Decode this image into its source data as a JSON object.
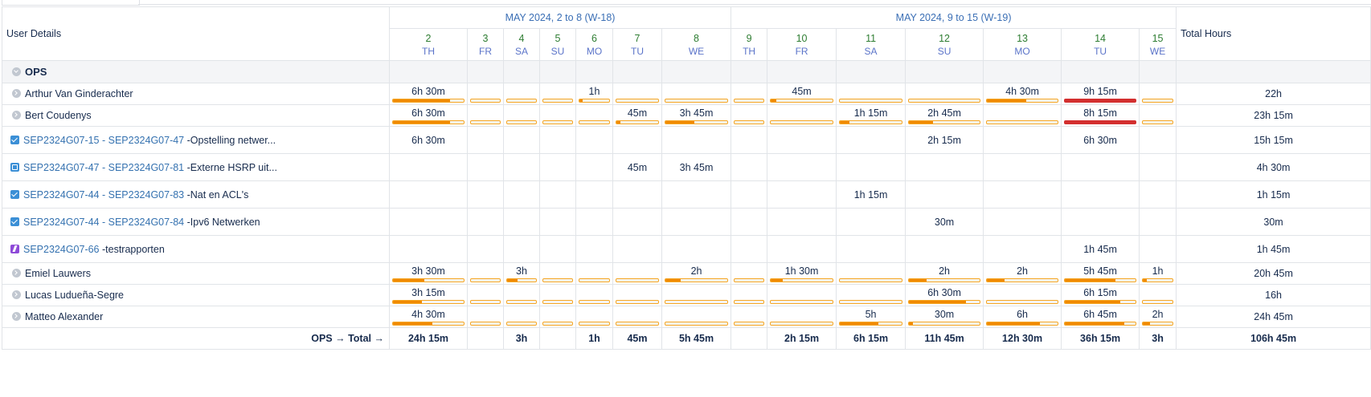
{
  "header": {
    "user_details": "User Details",
    "total_hours": "Total Hours",
    "weeks": [
      {
        "label": "MAY 2024, 2 to 8 (W-18)",
        "span": 7
      },
      {
        "label": "MAY 2024, 9 to 15 (W-19)",
        "span": 7
      }
    ],
    "days": [
      {
        "num": "2",
        "name": "TH"
      },
      {
        "num": "3",
        "name": "FR"
      },
      {
        "num": "4",
        "name": "SA"
      },
      {
        "num": "5",
        "name": "SU"
      },
      {
        "num": "6",
        "name": "MO"
      },
      {
        "num": "7",
        "name": "TU"
      },
      {
        "num": "8",
        "name": "WE"
      },
      {
        "num": "9",
        "name": "TH"
      },
      {
        "num": "10",
        "name": "FR"
      },
      {
        "num": "11",
        "name": "SA"
      },
      {
        "num": "12",
        "name": "SU"
      },
      {
        "num": "13",
        "name": "MO"
      },
      {
        "num": "14",
        "name": "TU"
      },
      {
        "num": "15",
        "name": "WE"
      }
    ]
  },
  "group": {
    "name": "OPS"
  },
  "rows": [
    {
      "kind": "user",
      "name": "Arthur Van Ginderachter",
      "total": "22h",
      "values": [
        "6h 30m",
        "",
        "",
        "",
        "1h",
        "",
        "",
        "",
        "45m",
        "",
        "",
        "4h 30m",
        "9h 15m",
        ""
      ],
      "load": [
        0.81,
        0,
        0,
        0,
        0.12,
        0,
        0,
        0,
        0.09,
        0,
        0,
        0.56,
        1,
        0
      ],
      "over": [
        false,
        false,
        false,
        false,
        false,
        false,
        false,
        false,
        false,
        false,
        false,
        false,
        true,
        false
      ]
    },
    {
      "kind": "user",
      "name": "Bert Coudenys",
      "total": "23h 15m",
      "values": [
        "6h 30m",
        "",
        "",
        "",
        "",
        "45m",
        "3h 45m",
        "",
        "",
        "1h 15m",
        "2h 45m",
        "",
        "8h 15m",
        ""
      ],
      "load": [
        0.81,
        0,
        0,
        0,
        0,
        0.09,
        0.47,
        0,
        0,
        0.16,
        0.34,
        0,
        1,
        0
      ],
      "over": [
        false,
        false,
        false,
        false,
        false,
        false,
        false,
        false,
        false,
        false,
        false,
        false,
        true,
        false
      ]
    },
    {
      "kind": "issue",
      "icon": "task",
      "link": "SEP2324G07-15 - SEP2324G07-47",
      "title": " -Opstelling netwer...",
      "total": "15h 15m",
      "values": [
        "6h 30m",
        "",
        "",
        "",
        "",
        "",
        "",
        "",
        "",
        "",
        "2h 15m",
        "",
        "6h 30m",
        ""
      ]
    },
    {
      "kind": "issue",
      "icon": "sub",
      "link": "SEP2324G07-47 - SEP2324G07-81",
      "title": " -Externe HSRP uit...",
      "total": "4h 30m",
      "values": [
        "",
        "",
        "",
        "",
        "",
        "45m",
        "3h 45m",
        "",
        "",
        "",
        "",
        "",
        "",
        ""
      ]
    },
    {
      "kind": "issue",
      "icon": "task",
      "link": "SEP2324G07-44 - SEP2324G07-83",
      "title": " -Nat en ACL's",
      "total": "1h 15m",
      "values": [
        "",
        "",
        "",
        "",
        "",
        "",
        "",
        "",
        "",
        "1h 15m",
        "",
        "",
        "",
        ""
      ]
    },
    {
      "kind": "issue",
      "icon": "task",
      "link": "SEP2324G07-44 - SEP2324G07-84",
      "title": " -Ipv6 Netwerken",
      "total": "30m",
      "values": [
        "",
        "",
        "",
        "",
        "",
        "",
        "",
        "",
        "",
        "",
        "30m",
        "",
        "",
        ""
      ]
    },
    {
      "kind": "issue",
      "icon": "epic",
      "link": "SEP2324G07-66",
      "title": " -testrapporten",
      "total": "1h 45m",
      "values": [
        "",
        "",
        "",
        "",
        "",
        "",
        "",
        "",
        "",
        "",
        "",
        "",
        "1h 45m",
        ""
      ]
    },
    {
      "kind": "user",
      "name": "Emiel Lauwers",
      "total": "20h 45m",
      "values": [
        "3h 30m",
        "",
        "3h",
        "",
        "",
        "",
        "2h",
        "",
        "1h 30m",
        "",
        "2h",
        "2h",
        "5h 45m",
        "1h"
      ],
      "load": [
        0.44,
        0,
        0.37,
        0,
        0,
        0,
        0.25,
        0,
        0.19,
        0,
        0.25,
        0.25,
        0.72,
        0.12
      ],
      "over": [
        false,
        false,
        false,
        false,
        false,
        false,
        false,
        false,
        false,
        false,
        false,
        false,
        false,
        false
      ]
    },
    {
      "kind": "user",
      "name": "Lucas Ludueña-Segre",
      "total": "16h",
      "values": [
        "3h 15m",
        "",
        "",
        "",
        "",
        "",
        "",
        "",
        "",
        "",
        "6h 30m",
        "",
        "6h 15m",
        ""
      ],
      "load": [
        0.41,
        0,
        0,
        0,
        0,
        0,
        0,
        0,
        0,
        0,
        0.81,
        0,
        0.78,
        0
      ],
      "over": [
        false,
        false,
        false,
        false,
        false,
        false,
        false,
        false,
        false,
        false,
        false,
        false,
        false,
        false
      ]
    },
    {
      "kind": "user",
      "name": "Matteo Alexander",
      "total": "24h 45m",
      "values": [
        "4h 30m",
        "",
        "",
        "",
        "",
        "",
        "",
        "",
        "",
        "5h",
        "30m",
        "6h",
        "6h 45m",
        "2h"
      ],
      "load": [
        0.56,
        0,
        0,
        0,
        0,
        0,
        0,
        0,
        0,
        0.62,
        0.06,
        0.75,
        0.84,
        0.25
      ],
      "over": [
        false,
        false,
        false,
        false,
        false,
        false,
        false,
        false,
        false,
        false,
        false,
        false,
        false,
        false
      ]
    }
  ],
  "footer": {
    "label": "OPS → Total →",
    "values": [
      "24h 15m",
      "",
      "3h",
      "",
      "1h",
      "45m",
      "5h 45m",
      "",
      "2h 15m",
      "6h 15m",
      "11h 45m",
      "12h 30m",
      "36h 15m",
      "3h"
    ],
    "total": "106h 45m"
  }
}
